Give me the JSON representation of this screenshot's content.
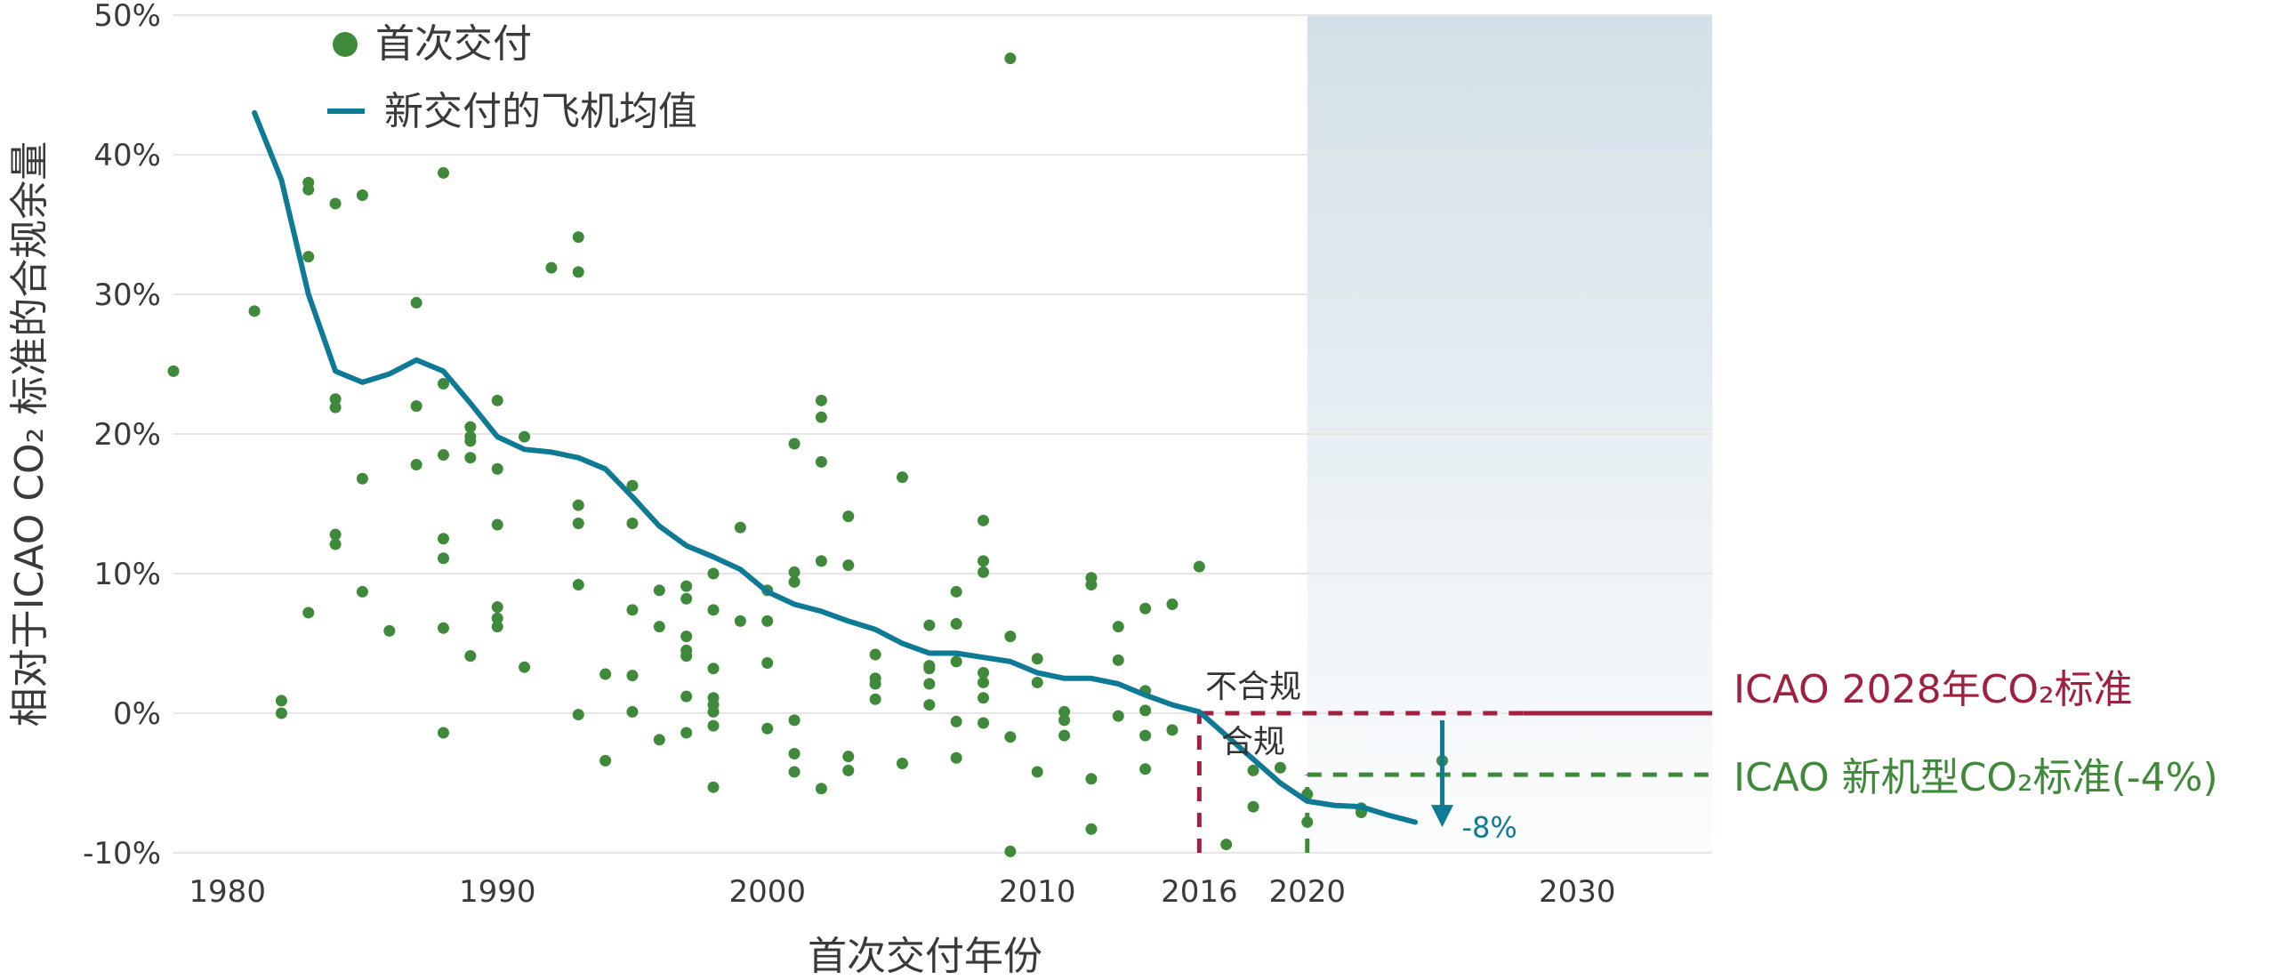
{
  "colors": {
    "points": "#3f8a3a",
    "average": "#0f7a95",
    "standard2028": "#a0203f",
    "newType": "#3f8a3a",
    "shade": "#d3e0e8",
    "grid": "#e6e6e6",
    "text": "#3a3a3a"
  },
  "chart_data": {
    "type": "scatter",
    "xlabel": "首次交付年份",
    "ylabel": "相对于ICAO CO₂ 标准的合规余量",
    "xlim": [
      1978,
      2035
    ],
    "ylim": [
      -10,
      50
    ],
    "x_ticks": [
      1980,
      1990,
      2000,
      2010,
      2016,
      2020,
      2030
    ],
    "x_tick_labels": [
      "1980",
      "1990",
      "2000",
      "2010",
      "2016",
      "2020",
      "2030"
    ],
    "y_ticks": [
      -10,
      0,
      10,
      20,
      30,
      40,
      50
    ],
    "y_tick_labels": [
      "-10%",
      "0%",
      "10%",
      "20%",
      "30%",
      "40%",
      "50%"
    ],
    "grid": "horizontal",
    "legend_position": "top-left",
    "shaded_region": {
      "x_from": 2020,
      "x_to": 2035
    },
    "series": [
      {
        "name": "首次交付",
        "kind": "scatter",
        "points": [
          [
            1978,
            24.5
          ],
          [
            1981,
            28.8
          ],
          [
            1982,
            0.9
          ],
          [
            1982,
            0
          ],
          [
            1983,
            38
          ],
          [
            1983,
            37.5
          ],
          [
            1983,
            32.7
          ],
          [
            1983,
            7.2
          ],
          [
            1984,
            36.5
          ],
          [
            1984,
            22.5
          ],
          [
            1984,
            21.9
          ],
          [
            1984,
            12.8
          ],
          [
            1984,
            12.1
          ],
          [
            1985,
            37.1
          ],
          [
            1985,
            16.8
          ],
          [
            1985,
            8.7
          ],
          [
            1986,
            5.9
          ],
          [
            1987,
            29.4
          ],
          [
            1987,
            22
          ],
          [
            1987,
            17.8
          ],
          [
            1988,
            38.7
          ],
          [
            1988,
            23.6
          ],
          [
            1988,
            18.5
          ],
          [
            1988,
            12.5
          ],
          [
            1988,
            11.1
          ],
          [
            1988,
            6.1
          ],
          [
            1988,
            -1.4
          ],
          [
            1989,
            20.5
          ],
          [
            1989,
            19.8
          ],
          [
            1989,
            19.5
          ],
          [
            1989,
            18.3
          ],
          [
            1989,
            4.1
          ],
          [
            1990,
            22.4
          ],
          [
            1990,
            17.5
          ],
          [
            1990,
            13.5
          ],
          [
            1990,
            7.6
          ],
          [
            1990,
            6.8
          ],
          [
            1990,
            6.2
          ],
          [
            1991,
            19.8
          ],
          [
            1991,
            3.3
          ],
          [
            1992,
            31.9
          ],
          [
            1993,
            34.1
          ],
          [
            1993,
            31.6
          ],
          [
            1993,
            14.9
          ],
          [
            1993,
            13.6
          ],
          [
            1993,
            9.2
          ],
          [
            1993,
            -0.1
          ],
          [
            1994,
            2.8
          ],
          [
            1994,
            -3.4
          ],
          [
            1995,
            16.3
          ],
          [
            1995,
            13.6
          ],
          [
            1995,
            7.4
          ],
          [
            1995,
            2.7
          ],
          [
            1995,
            0.1
          ],
          [
            1996,
            8.8
          ],
          [
            1996,
            6.2
          ],
          [
            1996,
            -1.9
          ],
          [
            1997,
            9.1
          ],
          [
            1997,
            8.2
          ],
          [
            1997,
            5.5
          ],
          [
            1997,
            4.5
          ],
          [
            1997,
            4.1
          ],
          [
            1997,
            1.2
          ],
          [
            1997,
            -1.4
          ],
          [
            1998,
            10
          ],
          [
            1998,
            7.4
          ],
          [
            1998,
            3.2
          ],
          [
            1998,
            1.1
          ],
          [
            1998,
            0.6
          ],
          [
            1998,
            0.1
          ],
          [
            1998,
            -0.9
          ],
          [
            1998,
            -5.3
          ],
          [
            1999,
            13.3
          ],
          [
            1999,
            6.6
          ],
          [
            2000,
            8.8
          ],
          [
            2000,
            6.6
          ],
          [
            2000,
            3.6
          ],
          [
            2000,
            -1.1
          ],
          [
            2001,
            19.3
          ],
          [
            2001,
            10.1
          ],
          [
            2001,
            9.4
          ],
          [
            2001,
            -0.5
          ],
          [
            2001,
            -2.9
          ],
          [
            2001,
            -4.2
          ],
          [
            2002,
            22.4
          ],
          [
            2002,
            21.2
          ],
          [
            2002,
            18
          ],
          [
            2002,
            10.9
          ],
          [
            2002,
            -5.4
          ],
          [
            2003,
            14.1
          ],
          [
            2003,
            10.6
          ],
          [
            2003,
            -3.1
          ],
          [
            2003,
            -4.1
          ],
          [
            2004,
            4.2
          ],
          [
            2004,
            2.5
          ],
          [
            2004,
            2.1
          ],
          [
            2004,
            1
          ],
          [
            2005,
            16.9
          ],
          [
            2005,
            -3.6
          ],
          [
            2006,
            6.3
          ],
          [
            2006,
            3.4
          ],
          [
            2006,
            3.2
          ],
          [
            2006,
            2.1
          ],
          [
            2006,
            0.6
          ],
          [
            2007,
            8.7
          ],
          [
            2007,
            6.4
          ],
          [
            2007,
            3.7
          ],
          [
            2007,
            -0.6
          ],
          [
            2007,
            -3.2
          ],
          [
            2008,
            13.8
          ],
          [
            2008,
            10.9
          ],
          [
            2008,
            10.1
          ],
          [
            2008,
            2.9
          ],
          [
            2008,
            2.2
          ],
          [
            2008,
            1.1
          ],
          [
            2008,
            -0.7
          ],
          [
            2009,
            46.9
          ],
          [
            2009,
            5.5
          ],
          [
            2009,
            -1.7
          ],
          [
            2009,
            -9.9
          ],
          [
            2010,
            3.9
          ],
          [
            2010,
            2.2
          ],
          [
            2010,
            -4.2
          ],
          [
            2011,
            0.1
          ],
          [
            2011,
            -0.5
          ],
          [
            2011,
            -1.6
          ],
          [
            2012,
            9.7
          ],
          [
            2012,
            9.2
          ],
          [
            2012,
            -4.7
          ],
          [
            2012,
            -8.3
          ],
          [
            2013,
            6.2
          ],
          [
            2013,
            3.8
          ],
          [
            2013,
            -0.2
          ],
          [
            2014,
            7.5
          ],
          [
            2014,
            1.6
          ],
          [
            2014,
            0.2
          ],
          [
            2014,
            -1.6
          ],
          [
            2014,
            -4
          ],
          [
            2015,
            7.8
          ],
          [
            2015,
            -1.2
          ],
          [
            2016,
            10.5
          ],
          [
            2017,
            -9.4
          ],
          [
            2018,
            -4.1
          ],
          [
            2018,
            -6.7
          ],
          [
            2019,
            -3.9
          ],
          [
            2020,
            -5.8
          ],
          [
            2020,
            -7.8
          ],
          [
            2022,
            -6.8
          ],
          [
            2022,
            -7.1
          ],
          [
            2025,
            -3.4
          ]
        ]
      },
      {
        "name": "新交付的飞机均值",
        "kind": "line",
        "points": [
          [
            1981,
            43
          ],
          [
            1982,
            38.2
          ],
          [
            1983,
            30
          ],
          [
            1984,
            24.5
          ],
          [
            1985,
            23.7
          ],
          [
            1986,
            24.3
          ],
          [
            1987,
            25.3
          ],
          [
            1988,
            24.5
          ],
          [
            1989,
            22.2
          ],
          [
            1990,
            19.8
          ],
          [
            1991,
            18.9
          ],
          [
            1992,
            18.7
          ],
          [
            1993,
            18.3
          ],
          [
            1994,
            17.5
          ],
          [
            1995,
            15.5
          ],
          [
            1996,
            13.4
          ],
          [
            1997,
            12
          ],
          [
            1998,
            11.2
          ],
          [
            1999,
            10.3
          ],
          [
            2000,
            8.7
          ],
          [
            2001,
            7.8
          ],
          [
            2002,
            7.3
          ],
          [
            2003,
            6.6
          ],
          [
            2004,
            6
          ],
          [
            2005,
            5
          ],
          [
            2006,
            4.3
          ],
          [
            2007,
            4.3
          ],
          [
            2008,
            4
          ],
          [
            2009,
            3.7
          ],
          [
            2010,
            2.9
          ],
          [
            2011,
            2.5
          ],
          [
            2012,
            2.5
          ],
          [
            2013,
            2.1
          ],
          [
            2014,
            1.3
          ],
          [
            2015,
            0.6
          ],
          [
            2016,
            0.1
          ],
          [
            2017,
            -1.6
          ],
          [
            2018,
            -3.3
          ],
          [
            2019,
            -5
          ],
          [
            2020,
            -6.3
          ],
          [
            2021,
            -6.6
          ],
          [
            2022,
            -6.7
          ],
          [
            2023,
            -7.3
          ],
          [
            2024,
            -7.8
          ]
        ]
      }
    ],
    "reference_lines": [
      {
        "label": "ICAO 2028年CO₂标准",
        "y": 0,
        "dashed_from": 2016,
        "solid_from": 2028,
        "to": 2035
      },
      {
        "label": "ICAO 新机型CO₂标准(-4%)",
        "y": -4.4,
        "from": 2020,
        "to": 2035
      }
    ],
    "vertical_markers": [
      {
        "x": 2016,
        "from_y": -10,
        "to_y": 0,
        "label": "2016"
      },
      {
        "x": 2020,
        "from_y": -10,
        "to_y": -4.4
      }
    ],
    "annotations": {
      "above_standard": "不合规",
      "below_standard": "合规",
      "arrow": {
        "x": 2025,
        "from_y": 0,
        "to_y": -8,
        "label": "-8%"
      }
    }
  }
}
